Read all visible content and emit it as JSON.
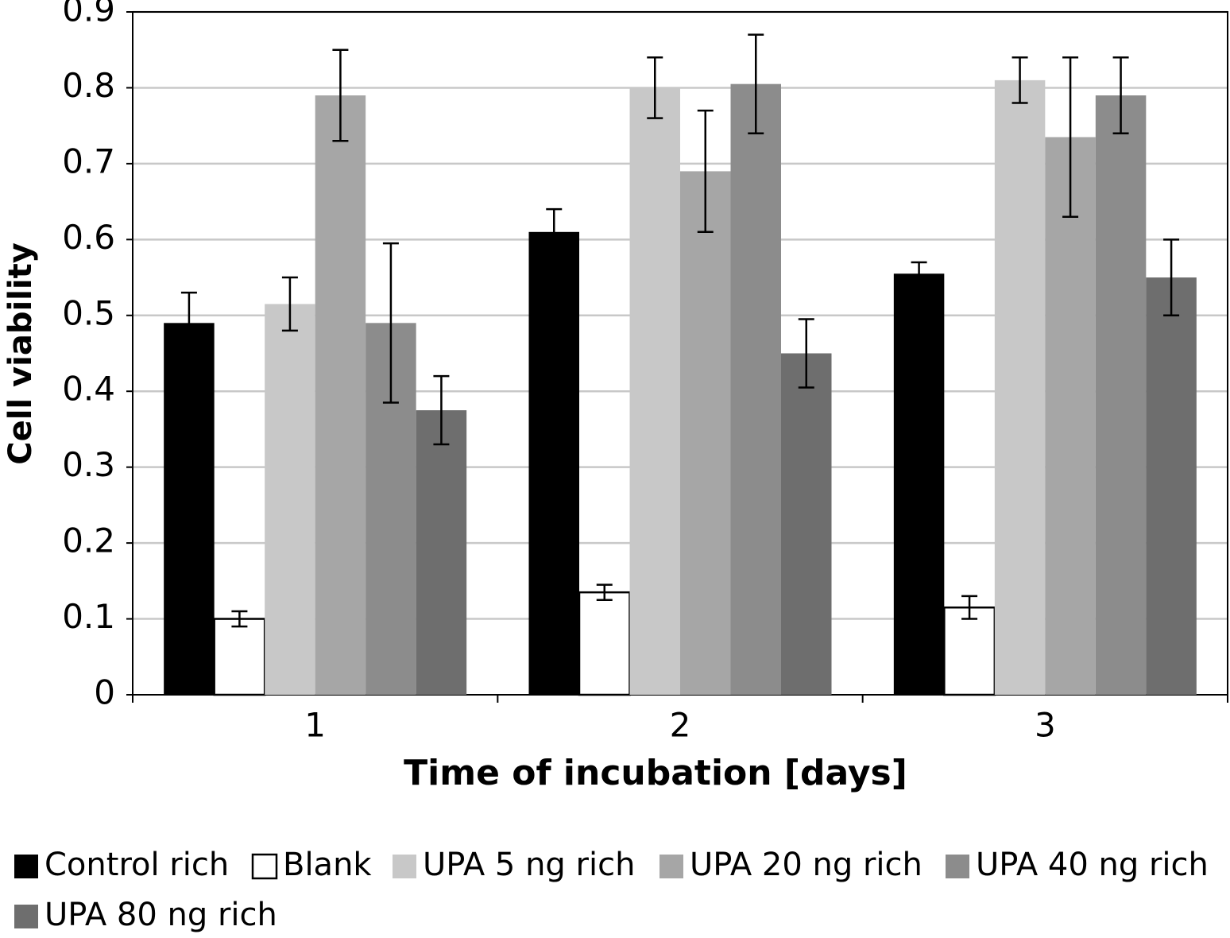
{
  "chart_data": {
    "type": "bar",
    "y_label": "Cell viability",
    "x_label": "Time of incubation [days]",
    "categories": [
      "1",
      "2",
      "3"
    ],
    "series": [
      {
        "name": "Control rich",
        "color": "#000000",
        "values": [
          0.49,
          0.61,
          0.555
        ],
        "errors": [
          0.04,
          0.03,
          0.015
        ]
      },
      {
        "name": "Blank",
        "color": "#ffffff",
        "values": [
          0.1,
          0.135,
          0.115
        ],
        "errors": [
          0.01,
          0.01,
          0.015
        ]
      },
      {
        "name": "UPA 5 ng rich",
        "color": "#c8c8c8",
        "values": [
          0.515,
          0.8,
          0.81
        ],
        "errors": [
          0.035,
          0.04,
          0.03
        ]
      },
      {
        "name": "UPA 20 ng rich",
        "color": "#a6a6a6",
        "values": [
          0.79,
          0.69,
          0.735
        ],
        "errors": [
          0.06,
          0.08,
          0.105
        ]
      },
      {
        "name": "UPA 40 ng rich",
        "color": "#8c8c8c",
        "values": [
          0.49,
          0.805,
          0.79
        ],
        "errors": [
          0.105,
          0.065,
          0.05
        ]
      },
      {
        "name": "UPA 80 ng rich",
        "color": "#6e6e6e",
        "values": [
          0.375,
          0.45,
          0.55
        ],
        "errors": [
          0.045,
          0.045,
          0.05
        ]
      }
    ],
    "ylim": [
      0,
      0.9
    ],
    "yticks": [
      0,
      0.1,
      0.2,
      0.3,
      0.4,
      0.5,
      0.6,
      0.7,
      0.8,
      0.9
    ],
    "grid": true,
    "legend": "bottom"
  }
}
